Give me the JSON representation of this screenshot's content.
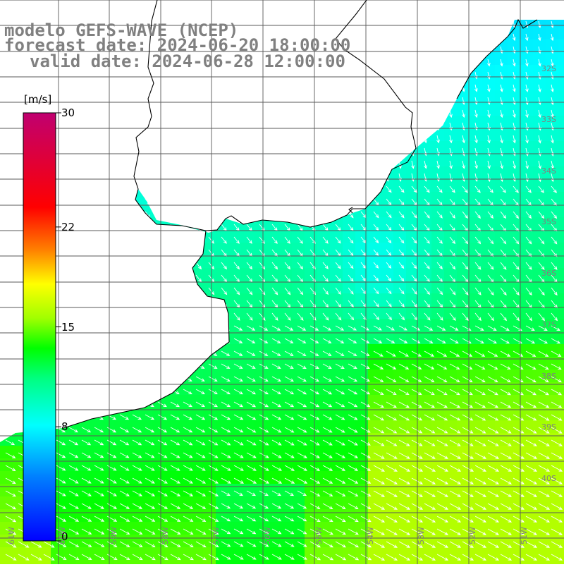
{
  "title": {
    "model": "modelo GEFS-WAVE (NCEP)",
    "forecast": "forecast date: 2024-06-20 18:00:00",
    "valid": "valid date: 2024-06-28 12:00:00"
  },
  "colorbar": {
    "unit": "[m/s]",
    "ticks": [
      {
        "value": 30,
        "label": "30"
      },
      {
        "value": 22,
        "label": "22"
      },
      {
        "value": 15,
        "label": "15"
      },
      {
        "value": 8,
        "label": "8"
      },
      {
        "value": 0,
        "label": "0"
      }
    ],
    "colors": [
      "#0000ff",
      "#0080ff",
      "#00ffff",
      "#00ff80",
      "#00ff00",
      "#80ff00",
      "#ffff00",
      "#ff8000",
      "#ff0000",
      "#c00060"
    ]
  },
  "lat_labels": [
    "32S",
    "33S",
    "34S",
    "35S",
    "36S",
    "37S",
    "38S",
    "39S",
    "40S"
  ],
  "lon_labels": [
    "61W",
    "60W",
    "59W",
    "58W",
    "57W",
    "56W",
    "55W",
    "54W",
    "53W",
    "52W",
    "51W"
  ],
  "colors": {
    "land": "#ffffff",
    "grid": "#5a5a5a",
    "coast": "#000000",
    "arrow": "#ffffff",
    "label": "#808080"
  }
}
